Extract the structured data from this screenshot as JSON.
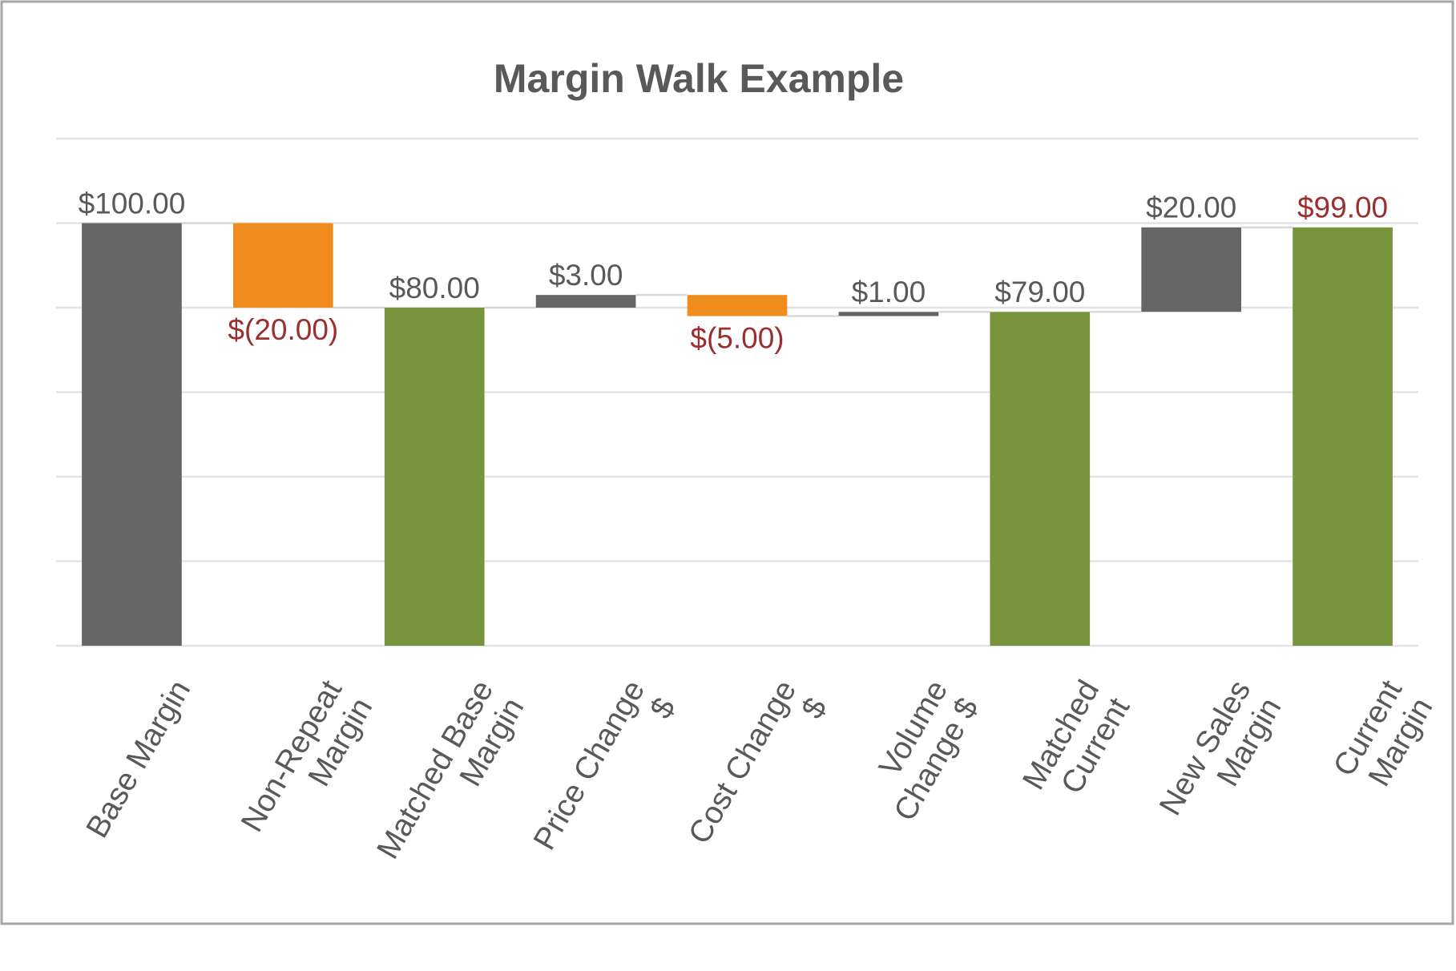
{
  "chart_data": {
    "type": "waterfall",
    "title": "Margin Walk Example",
    "categories": [
      "Base Margin",
      "Non-Repeat Margin",
      "Matched Base Margin",
      "Price Change $",
      "Cost Change $",
      "Volume Change $",
      "Matched Current",
      "New Sales Margin",
      "Current Margin"
    ],
    "values": [
      100,
      -20,
      80,
      3,
      -5,
      1,
      79,
      20,
      99
    ],
    "value_labels": [
      "$100.00",
      "$(20.00)",
      "$80.00",
      "$3.00",
      "$(5.00)",
      "$1.00",
      "$79.00",
      "$20.00",
      "$99.00"
    ],
    "totals": [
      true,
      false,
      true,
      false,
      false,
      false,
      true,
      false,
      true
    ],
    "colors": [
      "#666666",
      "#f08c1e",
      "#77933c",
      "#666666",
      "#f08c1e",
      "#666666",
      "#77933c",
      "#666666",
      "#77933c"
    ],
    "value_label_colors": [
      "#595959",
      "#9b2f2f",
      "#595959",
      "#595959",
      "#9b2f2f",
      "#595959",
      "#595959",
      "#595959",
      "#9b2f2f"
    ],
    "ylim": [
      0,
      120
    ],
    "yticks": [
      0,
      20,
      40,
      60,
      80,
      100,
      120
    ],
    "grid": true
  }
}
